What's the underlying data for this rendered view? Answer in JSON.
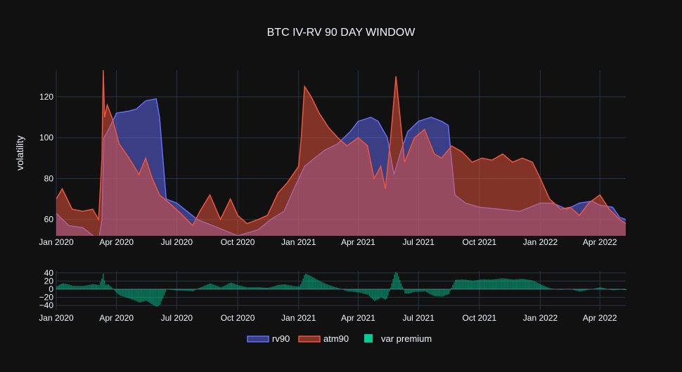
{
  "title": "BTC IV-RV 90 DAY WINDOW",
  "colors": {
    "background": "#111111",
    "grid": "#283442",
    "text": "#f2f5fa",
    "rv90": "#636efa",
    "atm90": "#ef553b",
    "var_premium": "#00cc96"
  },
  "chart_data": [
    {
      "type": "area",
      "title": "BTC IV-RV 90 DAY WINDOW",
      "ylabel": "volatility",
      "xlabel": "",
      "x_ticks": [
        "Jan 2020",
        "Apr 2020",
        "Jul 2020",
        "Oct 2020",
        "Jan 2021",
        "Apr 2021",
        "Jul 2021",
        "Oct 2021",
        "Jan 2022",
        "Apr 2022"
      ],
      "y_ticks": [
        60,
        80,
        100,
        120
      ],
      "ylim": [
        52,
        133
      ],
      "xlim": [
        "2020-01-01",
        "2022-05-10"
      ],
      "grid": true,
      "series": [
        {
          "name": "rv90",
          "x": [
            "2020-01-01",
            "2020-01-20",
            "2020-02-10",
            "2020-03-05",
            "2020-03-10",
            "2020-03-13",
            "2020-03-20",
            "2020-04-01",
            "2020-04-20",
            "2020-05-01",
            "2020-05-15",
            "2020-05-31",
            "2020-06-05",
            "2020-06-15",
            "2020-07-01",
            "2020-08-01",
            "2020-09-01",
            "2020-10-01",
            "2020-11-01",
            "2020-11-20",
            "2020-12-10",
            "2020-12-25",
            "2021-01-10",
            "2021-01-25",
            "2021-02-10",
            "2021-03-01",
            "2021-03-20",
            "2021-04-01",
            "2021-04-20",
            "2021-05-01",
            "2021-05-15",
            "2021-05-25",
            "2021-06-05",
            "2021-06-15",
            "2021-07-01",
            "2021-07-20",
            "2021-08-05",
            "2021-08-15",
            "2021-08-25",
            "2021-09-10",
            "2021-10-01",
            "2021-11-01",
            "2021-12-01",
            "2022-01-01",
            "2022-01-20",
            "2022-02-10",
            "2022-03-01",
            "2022-03-20",
            "2022-04-01",
            "2022-04-20",
            "2022-05-01",
            "2022-05-10"
          ],
          "values": [
            63,
            57,
            56,
            50,
            60,
            100,
            104,
            112,
            113,
            114,
            118,
            119,
            110,
            70,
            68,
            60,
            56,
            52,
            55,
            60,
            64,
            75,
            86,
            90,
            94,
            97,
            103,
            108,
            110,
            108,
            100,
            82,
            94,
            103,
            108,
            110,
            108,
            106,
            72,
            68,
            66,
            65,
            64,
            68,
            68,
            65,
            68,
            69,
            67,
            66,
            61,
            60
          ]
        },
        {
          "name": "atm90",
          "x": [
            "2020-01-01",
            "2020-01-10",
            "2020-01-25",
            "2020-02-10",
            "2020-02-25",
            "2020-03-05",
            "2020-03-10",
            "2020-03-12",
            "2020-03-14",
            "2020-03-18",
            "2020-03-25",
            "2020-04-05",
            "2020-04-20",
            "2020-05-05",
            "2020-05-15",
            "2020-05-25",
            "2020-06-05",
            "2020-06-20",
            "2020-07-10",
            "2020-07-25",
            "2020-08-05",
            "2020-08-20",
            "2020-09-05",
            "2020-09-20",
            "2020-10-01",
            "2020-10-15",
            "2020-11-01",
            "2020-11-15",
            "2020-12-01",
            "2020-12-15",
            "2021-01-01",
            "2021-01-05",
            "2021-01-10",
            "2021-01-20",
            "2021-02-01",
            "2021-02-15",
            "2021-03-01",
            "2021-03-15",
            "2021-04-01",
            "2021-04-15",
            "2021-04-25",
            "2021-05-05",
            "2021-05-12",
            "2021-05-20",
            "2021-05-28",
            "2021-06-10",
            "2021-06-25",
            "2021-07-10",
            "2021-07-25",
            "2021-08-05",
            "2021-08-20",
            "2021-09-05",
            "2021-09-20",
            "2021-10-05",
            "2021-10-20",
            "2021-11-05",
            "2021-11-20",
            "2021-12-05",
            "2021-12-20",
            "2022-01-01",
            "2022-01-15",
            "2022-02-01",
            "2022-02-15",
            "2022-03-01",
            "2022-03-15",
            "2022-04-01",
            "2022-04-15",
            "2022-05-01",
            "2022-05-10"
          ],
          "values": [
            70,
            75,
            65,
            64,
            65,
            60,
            90,
            133,
            110,
            116,
            110,
            97,
            90,
            82,
            90,
            80,
            72,
            68,
            62,
            57,
            64,
            72,
            60,
            70,
            62,
            58,
            60,
            62,
            73,
            78,
            86,
            100,
            125,
            120,
            112,
            105,
            100,
            96,
            100,
            96,
            80,
            86,
            75,
            100,
            130,
            88,
            100,
            104,
            92,
            90,
            96,
            93,
            88,
            90,
            89,
            92,
            88,
            90,
            88,
            80,
            70,
            65,
            66,
            62,
            68,
            72,
            65,
            60,
            58
          ]
        }
      ]
    },
    {
      "type": "bar",
      "series": [
        {
          "name": "var premium"
        }
      ],
      "x_ticks": [
        "Jan 2020",
        "Apr 2020",
        "Jul 2020",
        "Oct 2020",
        "Jan 2021",
        "Apr 2021",
        "Jul 2021",
        "Oct 2021",
        "Jan 2022",
        "Apr 2022"
      ],
      "y_ticks": [
        -40,
        -20,
        0,
        20,
        40
      ],
      "ylim": [
        -50,
        45
      ],
      "xlim": [
        "2020-01-01",
        "2022-05-10"
      ],
      "grid": true,
      "note_values": "var premium = atm90 - rv90 (computed per point)"
    }
  ],
  "legend": {
    "placement": "bottom-center",
    "items": [
      "rv90",
      "atm90",
      "var premium"
    ]
  }
}
